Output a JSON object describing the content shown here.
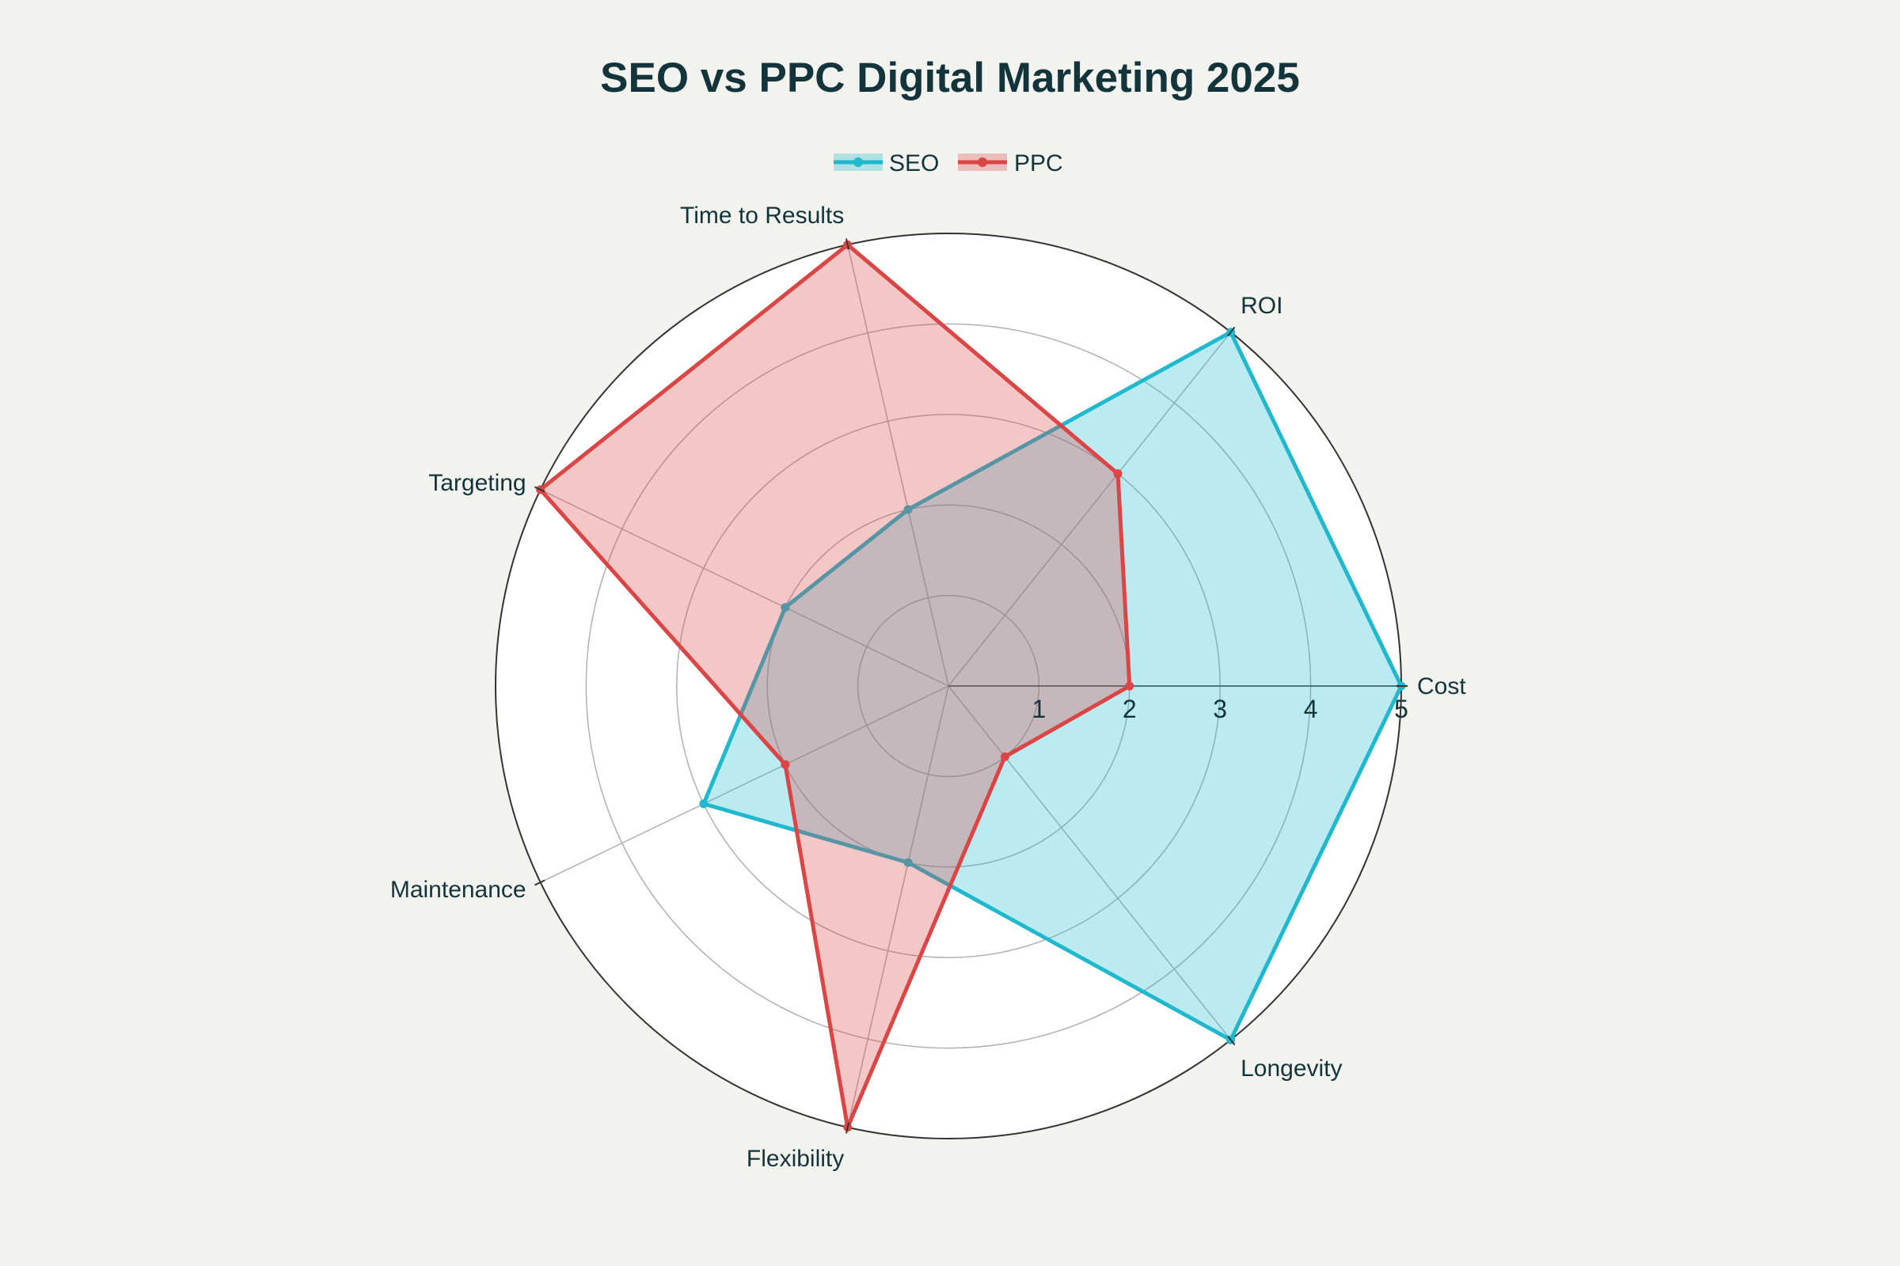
{
  "chart_data": {
    "type": "radar",
    "title": "SEO vs PPC Digital Marketing 2025",
    "categories": [
      "Cost",
      "ROI",
      "Time to Results",
      "Targeting",
      "Maintenance",
      "Flexibility",
      "Longevity"
    ],
    "series": [
      {
        "name": "SEO",
        "values": [
          5,
          5,
          2,
          2,
          3,
          2,
          5
        ],
        "color": "#1fb8cd",
        "fill": "#1fb8cd"
      },
      {
        "name": "PPC",
        "values": [
          2,
          3,
          5,
          5,
          2,
          5,
          1
        ],
        "color": "#db4545",
        "fill": "#db4545"
      }
    ],
    "radial_range": [
      0,
      5
    ],
    "radial_ticks": [
      "1",
      "2",
      "3",
      "4",
      "5"
    ],
    "legend_position": "top-center",
    "colors": {
      "background": "#f2f3ee",
      "plot_background": "#ffffff",
      "grid": "#b0b0b0",
      "outer_ring": "#333333",
      "text": "#13343b"
    }
  }
}
